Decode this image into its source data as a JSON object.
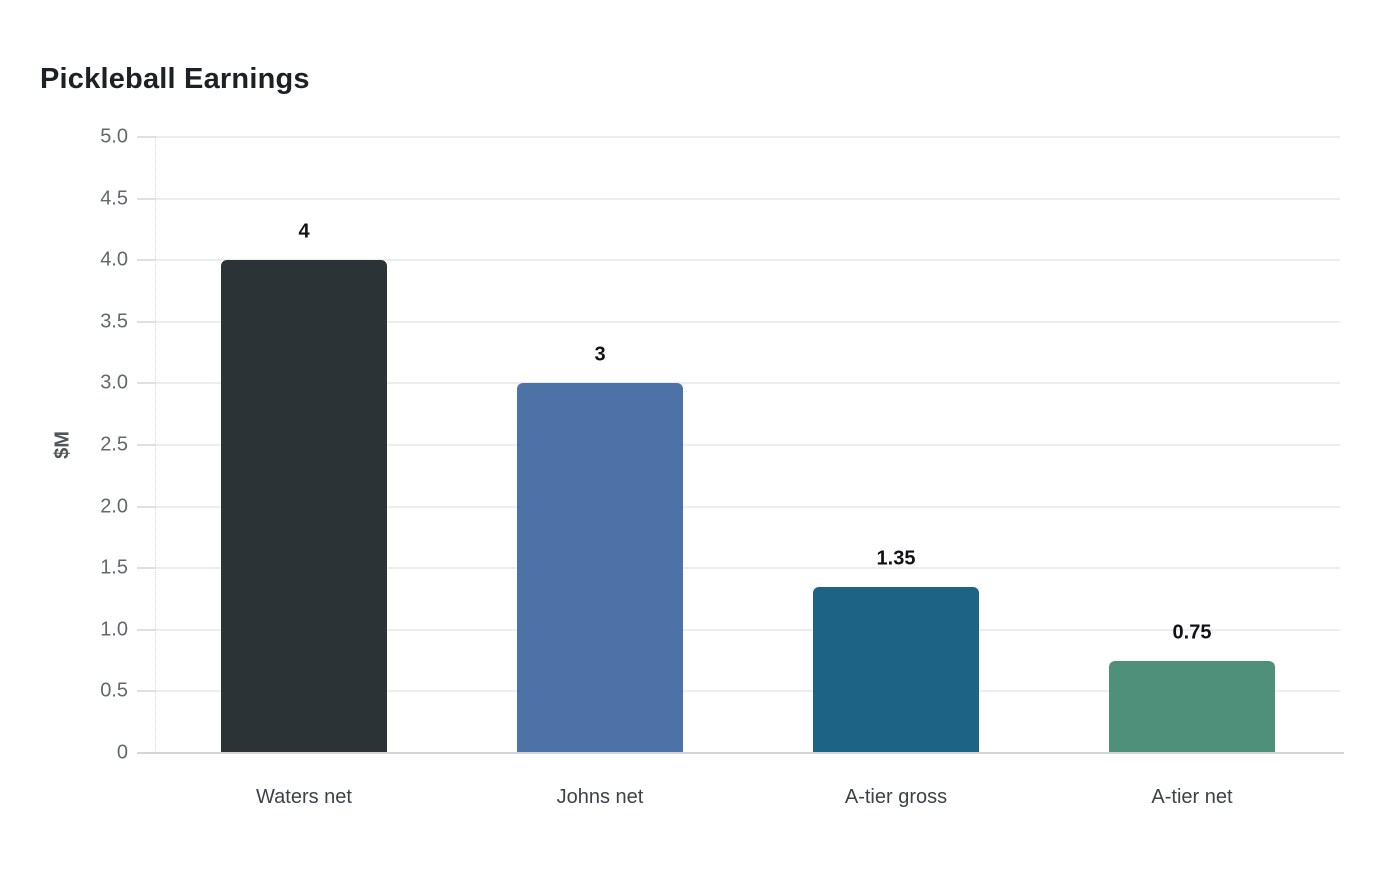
{
  "chart_data": {
    "type": "bar",
    "title": "Pickleball Earnings",
    "categories": [
      "Waters net",
      "Johns net",
      "A-tier gross",
      "A-tier net"
    ],
    "values": [
      4,
      3,
      1.35,
      0.75
    ],
    "value_labels": [
      "4",
      "3",
      "1.35",
      "0.75"
    ],
    "bar_colors": [
      "#2c3337",
      "#4c72a8",
      "#1d6386",
      "#4f907b"
    ],
    "xlabel": "",
    "ylabel": "$M",
    "ylim": [
      0,
      5
    ],
    "yticks": [
      {
        "value": 0,
        "label": "0"
      },
      {
        "value": 0.5,
        "label": "0.5"
      },
      {
        "value": 1,
        "label": "1.0"
      },
      {
        "value": 1.5,
        "label": "1.5"
      },
      {
        "value": 2,
        "label": "2.0"
      },
      {
        "value": 2.5,
        "label": "2.5"
      },
      {
        "value": 3,
        "label": "3.0"
      },
      {
        "value": 3.5,
        "label": "3.5"
      },
      {
        "value": 4,
        "label": "4.0"
      },
      {
        "value": 4.5,
        "label": "4.5"
      },
      {
        "value": 5,
        "label": "5.0"
      }
    ],
    "grid": "horizontal",
    "legend": "none",
    "background": "#ffffff",
    "title_color": "#1d2125",
    "tick_label_color": "#63686d",
    "category_label_color": "#3d4247",
    "value_label_color": "#101214",
    "gridline_color": "#ededed"
  }
}
